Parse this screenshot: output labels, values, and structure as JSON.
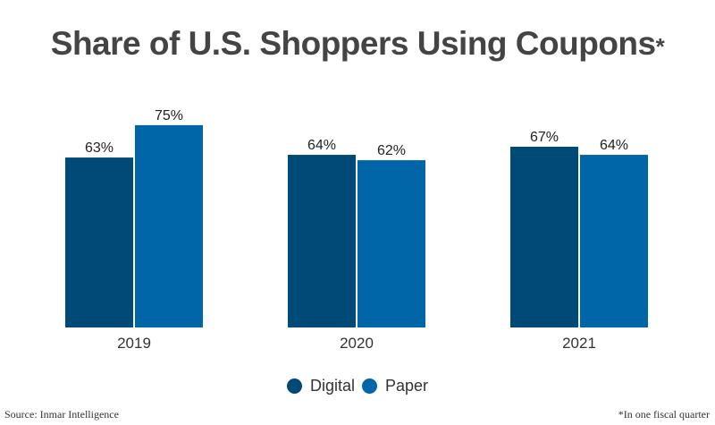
{
  "chart_data": {
    "type": "bar",
    "title": "Share of U.S. Shoppers Using Coupons",
    "title_marker": "*",
    "categories": [
      "2019",
      "2020",
      "2021"
    ],
    "series": [
      {
        "name": "Digital",
        "values": [
          63,
          64,
          67
        ],
        "labels": [
          "63%",
          "64%",
          "67%"
        ],
        "color": "#004a78"
      },
      {
        "name": "Paper",
        "values": [
          75,
          62,
          64
        ],
        "labels": [
          "75%",
          "62%",
          "64%"
        ],
        "color": "#0066a8"
      }
    ],
    "ylim": [
      0,
      100
    ],
    "grid": false,
    "legend": "bottom"
  },
  "source": "Source: Inmar Intelligence",
  "note": "*In one fiscal quarter"
}
